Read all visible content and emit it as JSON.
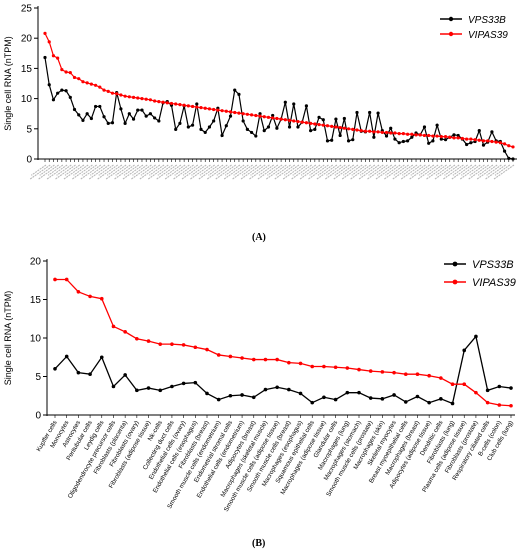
{
  "captions": {
    "a": "(A)",
    "b": "(B)"
  },
  "chart_data": [
    {
      "type": "line",
      "ylabel": "Single cell RNA (nTPM)",
      "xlabel": "",
      "ylim": [
        0,
        25
      ],
      "yticks": [
        0,
        5,
        10,
        15,
        20,
        25
      ],
      "grid": false,
      "legend_position": "top-right",
      "x_tick_labels_legible": false,
      "series": [
        {
          "name": "VPS33B",
          "color": "#000000",
          "values": [
            16.8,
            12.3,
            9.8,
            10.9,
            11.4,
            11.3,
            10.2,
            8.2,
            7.3,
            6.4,
            7.5,
            6.7,
            8.7,
            8.7,
            7.0,
            5.9,
            6.0,
            11.0,
            8.3,
            5.9,
            7.5,
            6.6,
            8.1,
            8.1,
            7.1,
            7.5,
            6.8,
            6.3,
            9.3,
            9.5,
            8.9,
            4.9,
            5.9,
            8.8,
            5.3,
            5.6,
            9.1,
            4.9,
            4.4,
            5.3,
            6.3,
            8.4,
            3.9,
            5.5,
            7.1,
            11.4,
            10.7,
            6.3,
            4.9,
            4.4,
            3.8,
            7.5,
            4.7,
            5.3,
            7.2,
            5.1,
            6.6,
            9.4,
            5.3,
            9.1,
            5.3,
            6.1,
            8.8,
            4.7,
            4.9,
            6.9,
            6.5,
            3.0,
            3.1,
            6.6,
            3.9,
            6.7,
            3.0,
            3.2,
            7.7,
            4.6,
            4.5,
            7.7,
            3.6,
            7.6,
            4.7,
            3.8,
            5.1,
            3.3,
            2.7,
            2.9,
            3.0,
            3.6,
            4.3,
            4.0,
            5.3,
            2.6,
            3.0,
            5.6,
            3.3,
            3.2,
            3.6,
            4.0,
            3.9,
            3.3,
            2.4,
            2.7,
            2.9,
            4.7,
            2.3,
            2.8,
            4.5,
            3.0,
            2.9,
            1.3,
            0.1,
            0.0
          ]
        },
        {
          "name": "VIPAS39",
          "color": "#ff0000",
          "values": [
            20.8,
            19.4,
            17.1,
            16.7,
            14.8,
            14.4,
            14.3,
            13.5,
            13.3,
            12.8,
            12.6,
            12.4,
            12.2,
            11.9,
            11.4,
            11.2,
            10.9,
            10.8,
            10.6,
            10.4,
            10.3,
            10.2,
            10.1,
            10.0,
            9.9,
            9.8,
            9.6,
            9.5,
            9.4,
            9.3,
            9.2,
            9.1,
            9.0,
            8.9,
            8.8,
            8.7,
            8.6,
            8.5,
            8.4,
            8.3,
            8.2,
            8.1,
            8.0,
            7.9,
            7.8,
            7.7,
            7.6,
            7.5,
            7.4,
            7.3,
            7.2,
            7.1,
            7.0,
            6.9,
            6.8,
            6.7,
            6.6,
            6.5,
            6.4,
            6.3,
            6.2,
            6.1,
            6.0,
            5.9,
            5.8,
            5.7,
            5.6,
            5.5,
            5.4,
            5.3,
            5.2,
            5.1,
            5.0,
            4.9,
            4.8,
            4.7,
            4.6,
            4.6,
            4.5,
            4.5,
            4.4,
            4.4,
            4.3,
            4.3,
            4.2,
            4.2,
            4.1,
            4.1,
            4.0,
            4.0,
            3.9,
            3.9,
            3.8,
            3.8,
            3.7,
            3.7,
            3.6,
            3.5,
            3.5,
            3.4,
            3.3,
            3.3,
            3.2,
            3.1,
            3.0,
            3.0,
            2.9,
            2.8,
            2.7,
            2.5,
            2.2,
            2.0
          ]
        }
      ]
    },
    {
      "type": "line",
      "ylabel": "Single cell RNA (nTPM)",
      "xlabel": "",
      "ylim": [
        0,
        20
      ],
      "yticks": [
        0,
        5,
        10,
        15,
        20
      ],
      "grid": false,
      "legend_position": "top-right",
      "categories": [
        "Kupffer cells",
        "Monocytes",
        "Astrocytes",
        "Peritubular cells",
        "Leydig cells",
        "Oligodendrocyte precursor cells",
        "Fibroblasts (placenta)",
        "Fibroblasts (ovary)",
        "Fibroblasts (adipose tissue)",
        "Nk-cells",
        "Collecting duct cells",
        "Endothelial cells (ovary)",
        "Endothelial cells (esophagus)",
        "Fibroblasts (breast)",
        "Smooth muscle cells (endometrium)",
        "Endometrial stromal cells",
        "Endothelial cells (endometrium)",
        "Adipocytes (breast)",
        "Macrophages (skeletal muscle)",
        "Smooth muscle cells (adipose tissue)",
        "Smooth muscle cells (breast)",
        "Macrophages (esophagus)",
        "Squamous epithelial cells",
        "Macrophages (adipose tissue)",
        "Glandular cells",
        "Macrophages (lung)",
        "Macrophages (stomach)",
        "Smooth muscle cells (prostate)",
        "Macrophages (skin)",
        "Skeletal myocytes",
        "Breast myoepithelial cells",
        "Macrophages (breast)",
        "Adipocytes (adipose tissue)",
        "Dendritic cells",
        "Fibroblasts (lung)",
        "Plasma cells (adipose tissue)",
        "Fibroblasts (prostate)",
        "Respiratory ciliated cells",
        "B-cells (colon)",
        "Club cells (lung)"
      ],
      "series": [
        {
          "name": "VPS33B",
          "color": "#000000",
          "values": [
            6.0,
            7.6,
            5.5,
            5.3,
            7.5,
            3.7,
            5.2,
            3.2,
            3.5,
            3.2,
            3.7,
            4.1,
            4.2,
            2.8,
            2.0,
            2.5,
            2.6,
            2.3,
            3.3,
            3.6,
            3.3,
            2.8,
            1.6,
            2.3,
            2.0,
            2.9,
            2.9,
            2.2,
            2.1,
            2.6,
            1.7,
            2.4,
            1.6,
            2.1,
            1.5,
            8.4,
            10.2,
            3.2,
            3.7,
            3.5
          ]
        },
        {
          "name": "VIPAS39",
          "color": "#ff0000",
          "values": [
            17.6,
            17.6,
            16.0,
            15.4,
            15.1,
            11.5,
            10.8,
            9.9,
            9.6,
            9.2,
            9.2,
            9.1,
            8.8,
            8.5,
            7.8,
            7.6,
            7.4,
            7.2,
            7.2,
            7.2,
            6.8,
            6.7,
            6.3,
            6.3,
            6.2,
            6.1,
            5.9,
            5.7,
            5.6,
            5.5,
            5.3,
            5.3,
            5.1,
            4.8,
            4.0,
            4.0,
            2.9,
            1.6,
            1.3,
            1.2
          ]
        }
      ]
    }
  ]
}
